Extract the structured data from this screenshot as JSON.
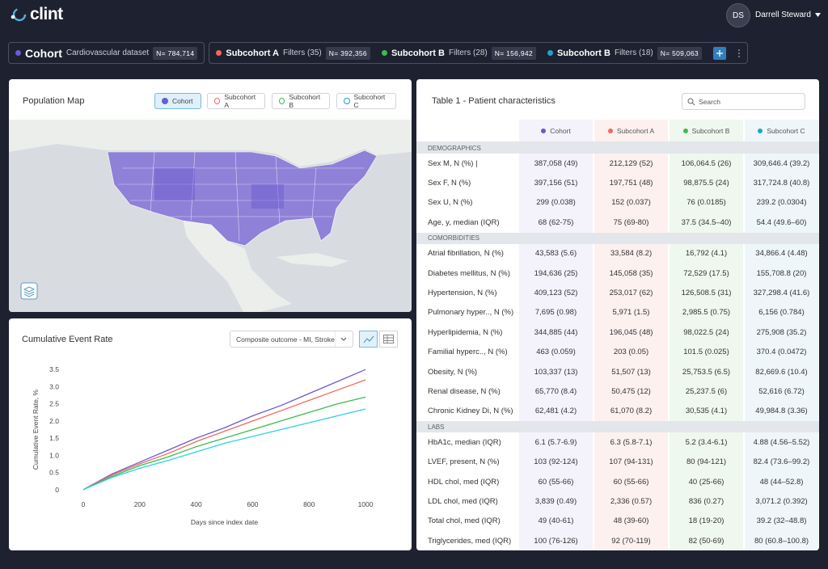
{
  "header": {
    "logo": "clint",
    "avatar": "DS",
    "user": "Darrell Steward"
  },
  "cohorts": [
    {
      "name": "Cohort",
      "description": "Cardiovascular dataset",
      "n": "N= 784,714",
      "color": "#6b5bd0"
    },
    {
      "name": "Subcohort A",
      "filters": "Filters (35)",
      "n": "N= 392,356",
      "color": "#f06a5c"
    },
    {
      "name": "Subcohort B",
      "filters": "Filters (28)",
      "n": "N= 156,942",
      "color": "#3dbb4e"
    },
    {
      "name": "Subcohort B",
      "filters": "Filters (18)",
      "n": "N= 509,063",
      "color": "#1fa3cc"
    }
  ],
  "map": {
    "title": "Population Map",
    "toggles": [
      {
        "label": "Cohort",
        "color": "#6b5bd0",
        "active": true
      },
      {
        "label": "Subcohort A",
        "color": "#f06a5c",
        "active": false
      },
      {
        "label": "Subcohort B",
        "color": "#3dbb4e",
        "active": false
      },
      {
        "label": "Subcohort C",
        "color": "#1fa3cc",
        "active": false
      }
    ]
  },
  "chart_panel": {
    "dropdown": "Composite outcome - MI, Stroke"
  },
  "chart_data": {
    "type": "line",
    "title": "Cumulative Event Rate",
    "x_label": "Days since index date",
    "y_label": "Cumulative Event Rate, %",
    "x": [
      0,
      100,
      200,
      300,
      400,
      500,
      600,
      700,
      800,
      900,
      1000
    ],
    "series": [
      {
        "color": "#6b5bd0",
        "values": [
          0,
          0.45,
          0.8,
          1.15,
          1.5,
          1.8,
          2.15,
          2.45,
          2.8,
          3.15,
          3.5
        ]
      },
      {
        "color": "#f06a5c",
        "values": [
          0,
          0.42,
          0.75,
          1.05,
          1.4,
          1.7,
          2.0,
          2.3,
          2.6,
          2.9,
          3.2
        ]
      },
      {
        "color": "#3dbb4e",
        "values": [
          0,
          0.38,
          0.7,
          0.95,
          1.25,
          1.5,
          1.75,
          2.0,
          2.25,
          2.5,
          2.7
        ]
      },
      {
        "color": "#2fd0e6",
        "values": [
          0,
          0.35,
          0.62,
          0.85,
          1.1,
          1.35,
          1.55,
          1.75,
          1.95,
          2.15,
          2.35
        ]
      }
    ],
    "xlim": [
      -40,
      1060
    ],
    "ylim": [
      -0.1,
      3.6
    ],
    "xticks": [
      0,
      200,
      400,
      600,
      800,
      1000
    ],
    "yticks": [
      0,
      0.5,
      {
        "value": 1,
        "label": "1.0"
      },
      1.5,
      {
        "value": 2,
        "label": "2.0"
      },
      2.5,
      {
        "value": 3,
        "label": "3.0"
      },
      3.5
    ],
    "grid": false
  },
  "table": {
    "title": "Table 1 - Patient characteristics",
    "search": "Search",
    "columns": [
      {
        "name": "Cohort",
        "color": "#6b5bd0",
        "tint": "#f4f2fb"
      },
      {
        "name": "Subcohort A",
        "color": "#f06a5c",
        "tint": "#fdf1f0"
      },
      {
        "name": "Subcohort B",
        "color": "#3dbb4e",
        "tint": "#eff8ef"
      },
      {
        "name": "Subcohort C",
        "color": "#1fa3cc",
        "tint": "#eef6fa"
      }
    ],
    "sections": [
      {
        "title": "DEMOGRAPHICS",
        "rows": [
          [
            "Sex M, N (%) |",
            "387,058 (49)",
            "212,129 (52)",
            "106,064.5 (26)",
            "309,646.4 (39.2)"
          ],
          [
            "Sex F, N (%)",
            "397,156 (51)",
            "197,751 (48)",
            "98,875.5 (24)",
            "317,724.8 (40.8)"
          ],
          [
            "Sex U, N (%)",
            "299 (0.038)",
            "152 (0.037)",
            "76 (0.0185)",
            "239.2 (0.0304)"
          ],
          [
            "Age, y, median (IQR)",
            "68 (62-75)",
            "75 (69-80)",
            "37.5 (34.5–40)",
            "54.4 (49.6–60)"
          ]
        ]
      },
      {
        "title": "COMORBIDITIES",
        "rows": [
          [
            "Atrial fibrillation, N (%)",
            "43,583 (5.6)",
            "33,584 (8.2)",
            "16,792 (4.1)",
            "34,866.4 (4.48)"
          ],
          [
            "Diabetes mellitus, N (%)",
            "194,636 (25)",
            "145,058 (35)",
            "72,529 (17.5)",
            "155,708.8 (20)"
          ],
          [
            "Hypertension, N (%)",
            "409,123 (52)",
            "253,017 (62)",
            "126,508.5 (31)",
            "327,298.4 (41.6)"
          ],
          [
            "Pulmonary hyper.., N (%)",
            "7,695 (0.98)",
            "5,971 (1.5)",
            "2,985.5 (0.75)",
            "6,156 (0.784)"
          ],
          [
            "Hyperlipidemia, N (%)",
            "344,885 (44)",
            "196,045 (48)",
            "98,022.5 (24)",
            "275,908 (35.2)"
          ],
          [
            "Familial hyperc.., N (%)",
            "463 (0.059)",
            "203 (0.05)",
            "101.5 (0.025)",
            "370.4 (0.0472)"
          ],
          [
            "Obesity, N (%)",
            "103,337 (13)",
            "51,507 (13)",
            "25,753.5 (6.5)",
            "82,669.6 (10.4)"
          ],
          [
            "Renal disease, N (%)",
            "65,770 (8.4)",
            "50,475 (12)",
            "25,237.5 (6)",
            "52,616 (6.72)"
          ],
          [
            "Chronic Kidney Di, N (%)",
            "62,481 (4.2)",
            "61,070 (8.2)",
            "30,535 (4.1)",
            "49,984.8 (3.36)"
          ]
        ]
      },
      {
        "title": "LABS",
        "rows": [
          [
            "HbA1c, median (IQR)",
            "6.1 (5.7-6.9)",
            "6.3 (5.8-7.1)",
            "5.2 (3.4-6.1)",
            "4.88 (4.56–5.52)"
          ],
          [
            "LVEF, present, N (%)",
            "103 (92-124)",
            "107 (94-131)",
            "80 (94-121)",
            "82.4 (73.6–99.2)"
          ],
          [
            "HDL chol, med (IQR)",
            "60 (55-66)",
            "60 (55-66)",
            "40 (25-66)",
            "48 (44–52.8)"
          ],
          [
            "LDL chol, med (IQR)",
            "3,839 (0.49)",
            "2,336 (0.57)",
            "836 (0.27)",
            "3,071.2 (0.392)"
          ],
          [
            "Total chol, med (IQR)",
            "49 (40-61)",
            "48 (39-60)",
            "18 (19-20)",
            "39.2 (32–48.8)"
          ],
          [
            "Triglycerides, med (IQR)",
            "100 (76-126)",
            "92 (70-119)",
            "82 (50-69)",
            "80 (60.8–100.8)"
          ]
        ]
      }
    ]
  }
}
